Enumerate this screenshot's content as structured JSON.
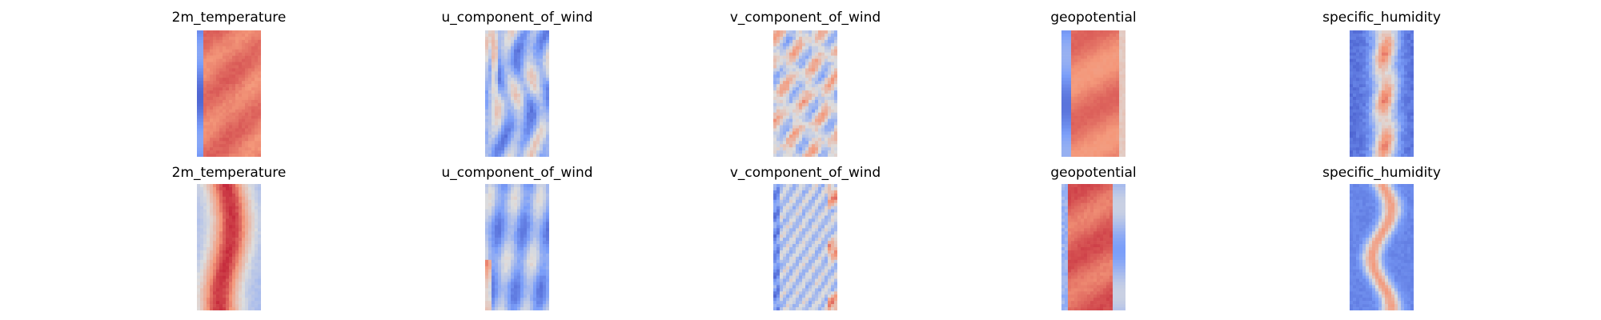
{
  "chart_data": [
    {
      "type": "heatmap",
      "title": "2m_temperature",
      "colormap": "coolwarm",
      "axes": "off",
      "grid": false
    },
    {
      "type": "heatmap",
      "title": "u_component_of_wind",
      "colormap": "coolwarm",
      "axes": "off",
      "grid": false
    },
    {
      "type": "heatmap",
      "title": "v_component_of_wind",
      "colormap": "coolwarm",
      "axes": "off",
      "grid": false
    },
    {
      "type": "heatmap",
      "title": "geopotential",
      "colormap": "coolwarm",
      "axes": "off",
      "grid": false
    },
    {
      "type": "heatmap",
      "title": "specific_humidity",
      "colormap": "coolwarm",
      "axes": "off",
      "grid": false
    },
    {
      "type": "heatmap",
      "title": "2m_temperature",
      "colormap": "coolwarm",
      "axes": "off",
      "grid": false
    },
    {
      "type": "heatmap",
      "title": "u_component_of_wind",
      "colormap": "coolwarm",
      "axes": "off",
      "grid": false
    },
    {
      "type": "heatmap",
      "title": "v_component_of_wind",
      "colormap": "coolwarm",
      "axes": "off",
      "grid": false
    },
    {
      "type": "heatmap",
      "title": "geopotential",
      "colormap": "coolwarm",
      "axes": "off",
      "grid": false
    },
    {
      "type": "heatmap",
      "title": "specific_humidity",
      "colormap": "coolwarm",
      "axes": "off",
      "grid": false
    }
  ],
  "colors": {
    "cold": "#3b4cc0",
    "neutral": "#dddddd",
    "warm": "#b40426"
  }
}
